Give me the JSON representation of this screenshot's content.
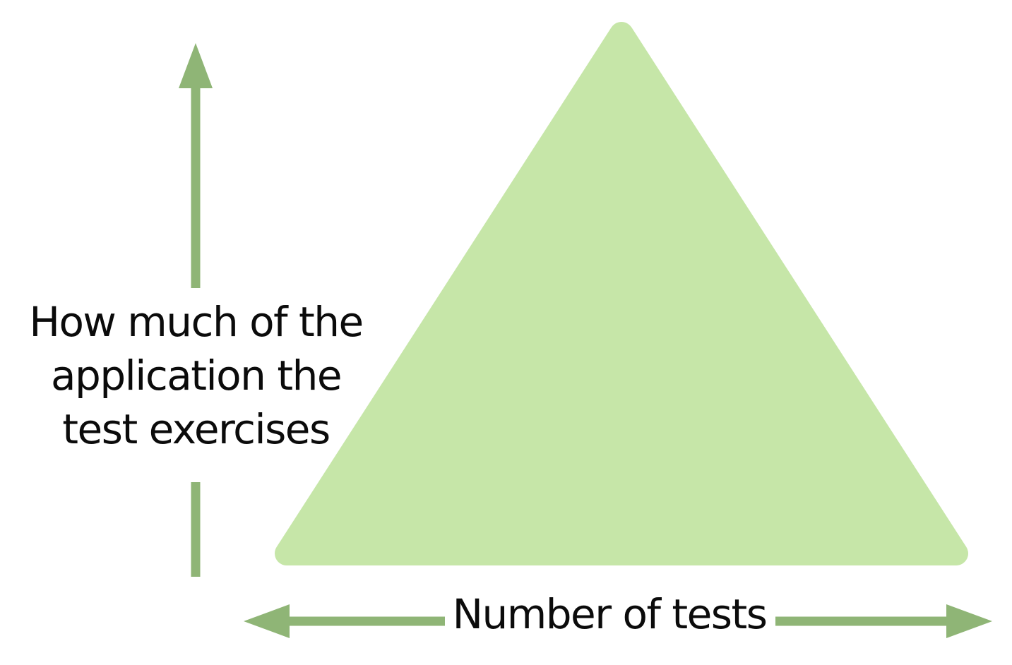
{
  "labels": {
    "vertical_axis": {
      "line1": "How much of the",
      "line2": "application the",
      "line3": "test exercises"
    },
    "horizontal_axis": "Number of tests"
  },
  "colors": {
    "triangle_fill": "#c6e6a8",
    "arrow": "#8fb576",
    "text": "#0b0b0b"
  }
}
